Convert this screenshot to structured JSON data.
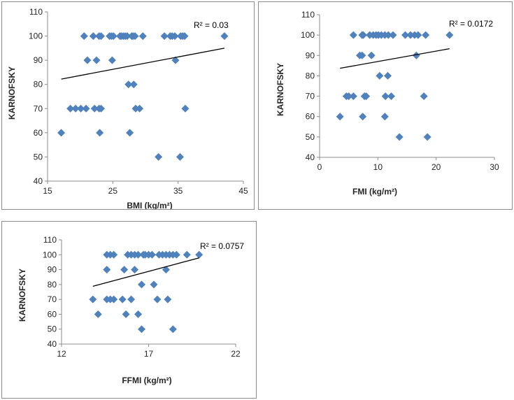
{
  "colors": {
    "marker": "#4f81bd",
    "trendline": "#000000",
    "axis": "#8c8c8c",
    "text": "#262626"
  },
  "chart_data": [
    {
      "type": "scatter",
      "title": "",
      "xlabel": "BMI (kg/m²)",
      "ylabel": "KARNOFSKY",
      "xlim": [
        15,
        45
      ],
      "ylim": [
        40,
        110
      ],
      "xticks": [
        "15",
        "25",
        "35",
        "45"
      ],
      "yticks": [
        "40",
        "50",
        "60",
        "70",
        "80",
        "90",
        "100",
        "110"
      ],
      "r2_label": "R² = 0.03",
      "trendline": {
        "x": [
          17.1,
          42.1
        ],
        "y": [
          82.2,
          95.0
        ]
      },
      "points": [
        [
          20.6,
          100
        ],
        [
          22.0,
          100
        ],
        [
          22.9,
          100
        ],
        [
          23.2,
          100
        ],
        [
          24.5,
          100
        ],
        [
          24.8,
          100
        ],
        [
          25.1,
          100
        ],
        [
          26.1,
          100
        ],
        [
          26.3,
          100
        ],
        [
          26.6,
          100
        ],
        [
          26.9,
          100
        ],
        [
          27.2,
          100
        ],
        [
          27.9,
          100
        ],
        [
          28.1,
          100
        ],
        [
          28.4,
          100
        ],
        [
          29.6,
          100
        ],
        [
          32.9,
          100
        ],
        [
          33.8,
          100
        ],
        [
          34.1,
          100
        ],
        [
          34.5,
          100
        ],
        [
          35.4,
          100
        ],
        [
          35.7,
          100
        ],
        [
          36.0,
          100
        ],
        [
          42.1,
          100
        ],
        [
          21.1,
          90
        ],
        [
          22.5,
          90
        ],
        [
          24.9,
          90
        ],
        [
          34.6,
          90
        ],
        [
          27.4,
          80
        ],
        [
          28.2,
          80
        ],
        [
          18.5,
          70
        ],
        [
          19.3,
          70
        ],
        [
          20.1,
          70
        ],
        [
          20.9,
          70
        ],
        [
          22.2,
          70
        ],
        [
          22.9,
          70
        ],
        [
          23.2,
          70
        ],
        [
          28.5,
          70
        ],
        [
          29.1,
          70
        ],
        [
          36.1,
          70
        ],
        [
          17.1,
          60
        ],
        [
          23.0,
          60
        ],
        [
          27.6,
          60
        ],
        [
          32.0,
          50
        ],
        [
          35.3,
          50
        ]
      ]
    },
    {
      "type": "scatter",
      "title": "",
      "xlabel": "FMI (kg/m²)",
      "ylabel": "KARNOFSKY",
      "xlim": [
        0,
        30
      ],
      "ylim": [
        40,
        110
      ],
      "xticks": [
        "0",
        "10",
        "20",
        "30"
      ],
      "yticks": [
        "40",
        "50",
        "60",
        "70",
        "80",
        "90",
        "100",
        "110"
      ],
      "r2_label": "R² = 0.0172",
      "trendline": {
        "x": [
          3.5,
          22.3
        ],
        "y": [
          83.7,
          93.3
        ]
      },
      "points": [
        [
          5.8,
          100
        ],
        [
          7.3,
          100
        ],
        [
          7.5,
          100
        ],
        [
          8.6,
          100
        ],
        [
          9.2,
          100
        ],
        [
          9.7,
          100
        ],
        [
          10.1,
          100
        ],
        [
          10.6,
          100
        ],
        [
          11.2,
          100
        ],
        [
          11.8,
          100
        ],
        [
          12.6,
          100
        ],
        [
          14.7,
          100
        ],
        [
          15.6,
          100
        ],
        [
          16.3,
          100
        ],
        [
          16.9,
          100
        ],
        [
          18.2,
          100
        ],
        [
          22.3,
          100
        ],
        [
          6.9,
          90
        ],
        [
          7.3,
          90
        ],
        [
          8.9,
          90
        ],
        [
          16.6,
          90
        ],
        [
          10.3,
          80
        ],
        [
          11.7,
          80
        ],
        [
          4.6,
          70
        ],
        [
          5.0,
          70
        ],
        [
          5.8,
          70
        ],
        [
          7.7,
          70
        ],
        [
          8.0,
          70
        ],
        [
          11.3,
          70
        ],
        [
          12.3,
          70
        ],
        [
          17.9,
          70
        ],
        [
          3.5,
          60
        ],
        [
          7.4,
          60
        ],
        [
          11.2,
          60
        ],
        [
          13.7,
          50
        ],
        [
          18.5,
          50
        ]
      ]
    },
    {
      "type": "scatter",
      "title": "",
      "xlabel": "FFMI (kg/m²)",
      "ylabel": "KARNOFSKY",
      "xlim": [
        12,
        22
      ],
      "ylim": [
        40,
        110
      ],
      "xticks": [
        "12",
        "17",
        "22"
      ],
      "yticks": [
        "40",
        "50",
        "60",
        "70",
        "80",
        "90",
        "100",
        "110"
      ],
      "r2_label": "R² = 0.0757",
      "trendline": {
        "x": [
          13.8,
          19.9
        ],
        "y": [
          78.8,
          97.9
        ]
      },
      "points": [
        [
          14.6,
          100
        ],
        [
          14.8,
          100
        ],
        [
          15.0,
          100
        ],
        [
          15.8,
          100
        ],
        [
          16.0,
          100
        ],
        [
          16.2,
          100
        ],
        [
          16.4,
          100
        ],
        [
          16.7,
          100
        ],
        [
          16.8,
          100
        ],
        [
          17.0,
          100
        ],
        [
          17.2,
          100
        ],
        [
          17.6,
          100
        ],
        [
          17.8,
          100
        ],
        [
          18.0,
          100
        ],
        [
          18.2,
          100
        ],
        [
          18.4,
          100
        ],
        [
          18.6,
          100
        ],
        [
          19.2,
          100
        ],
        [
          19.9,
          100
        ],
        [
          14.6,
          90
        ],
        [
          15.6,
          90
        ],
        [
          16.2,
          90
        ],
        [
          18.0,
          90
        ],
        [
          16.6,
          80
        ],
        [
          17.3,
          80
        ],
        [
          13.8,
          70
        ],
        [
          14.6,
          70
        ],
        [
          14.8,
          70
        ],
        [
          15.0,
          70
        ],
        [
          15.5,
          70
        ],
        [
          16.0,
          70
        ],
        [
          17.5,
          70
        ],
        [
          18.1,
          70
        ],
        [
          14.1,
          60
        ],
        [
          15.7,
          60
        ],
        [
          16.4,
          60
        ],
        [
          16.6,
          50
        ],
        [
          18.4,
          50
        ]
      ]
    }
  ]
}
